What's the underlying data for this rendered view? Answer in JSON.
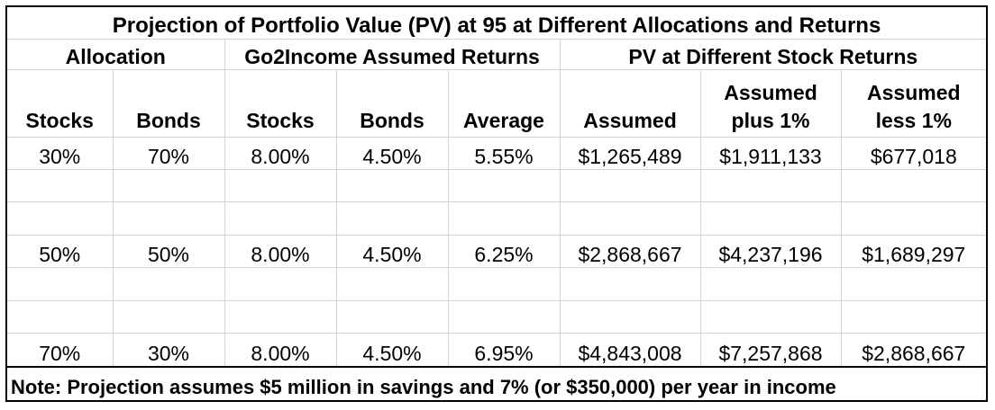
{
  "title": "Projection of Portfolio Value (PV) at 95 at  Different Allocations and Returns",
  "group_headers": {
    "allocation": "Allocation",
    "assumed_returns": "Go2Income Assumed Returns",
    "pv_returns": "PV at Different Stock Returns"
  },
  "columns": {
    "stocks": "Stocks",
    "bonds": "Bonds",
    "ret_stocks": "Stocks",
    "ret_bonds": "Bonds",
    "average": "Average",
    "assumed": "Assumed",
    "plus_line1": "Assumed",
    "plus_line2": "plus 1%",
    "less_line1": "Assumed",
    "less_line2": "less 1%"
  },
  "rows": [
    {
      "stocks": "30%",
      "bonds": "70%",
      "ret_stocks": "8.00%",
      "ret_bonds": "4.50%",
      "average": "5.55%",
      "assumed": "$1,265,489",
      "plus1": "$1,911,133",
      "less1": "$677,018"
    },
    {
      "stocks": "50%",
      "bonds": "50%",
      "ret_stocks": "8.00%",
      "ret_bonds": "4.50%",
      "average": "6.25%",
      "assumed": "$2,868,667",
      "plus1": "$4,237,196",
      "less1": "$1,689,297"
    },
    {
      "stocks": "70%",
      "bonds": "30%",
      "ret_stocks": "8.00%",
      "ret_bonds": "4.50%",
      "average": "6.95%",
      "assumed": "$4,843,008",
      "plus1": "$7,257,868",
      "less1": "$2,868,667"
    }
  ],
  "note": "Note: Projection assumes $5 million in savings and 7% (or $350,000) per year in income"
}
